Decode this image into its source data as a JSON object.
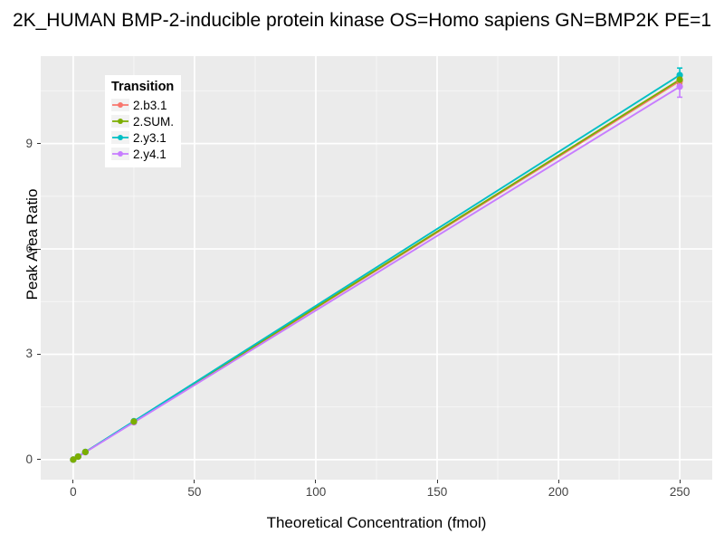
{
  "title": "2K_HUMAN BMP-2-inducible protein kinase OS=Homo sapiens GN=BMP2K PE=1",
  "chart_data": {
    "type": "line",
    "title": "2K_HUMAN BMP-2-inducible protein kinase OS=Homo sapiens GN=BMP2K PE=1",
    "xlabel": "Theoretical Concentration (fmol)",
    "ylabel": "Peak Area Ratio",
    "xlim": [
      -13.4,
      263.4
    ],
    "ylim": [
      -0.57,
      11.49
    ],
    "x_ticks": [
      0,
      50,
      100,
      150,
      200,
      250
    ],
    "x_tick_labels": [
      "0",
      "50",
      "100",
      "150",
      "200",
      "250"
    ],
    "y_ticks": [
      0,
      3,
      6,
      9
    ],
    "y_tick_labels": [
      "0",
      "3",
      "6",
      "9"
    ],
    "x_minor_gridlines": [
      25,
      75,
      125,
      175,
      225
    ],
    "y_minor_gridlines": [
      1.5,
      4.5,
      7.5,
      10.5
    ],
    "grid": true,
    "panel_background": "#EBEBEB",
    "gridline_color": "#FFFFFF",
    "legend": {
      "title": "Transition",
      "position": "inside-top-left"
    },
    "x": [
      0,
      2,
      5,
      25,
      250
    ],
    "series": [
      {
        "name": "2.b3.1",
        "color": "#F8766D",
        "values": [
          0.0,
          0.086,
          0.216,
          1.078,
          10.78
        ],
        "error_bar": {
          "x": 250,
          "low": 10.68,
          "high": 10.88
        },
        "line_z": 1,
        "point_z": 1
      },
      {
        "name": "2.SUM.",
        "color": "#7CAE00",
        "values": [
          0.0,
          0.087,
          0.217,
          1.083,
          10.82
        ],
        "error_bar": {
          "x": 250,
          "low": 10.72,
          "high": 10.92
        },
        "line_z": 2,
        "point_z": 4
      },
      {
        "name": "2.y3.1",
        "color": "#00BFC4",
        "values": [
          0.0,
          0.088,
          0.219,
          1.095,
          10.95
        ],
        "error_bar": {
          "x": 250,
          "low": 10.8,
          "high": 11.15
        },
        "line_z": 3,
        "point_z": 3
      },
      {
        "name": "2.y4.1",
        "color": "#C77CFF",
        "values": [
          0.0,
          0.085,
          0.212,
          1.062,
          10.62
        ],
        "error_bar": {
          "x": 250,
          "low": 10.32,
          "high": 10.75
        },
        "line_z": 4,
        "point_z": 2
      }
    ]
  }
}
